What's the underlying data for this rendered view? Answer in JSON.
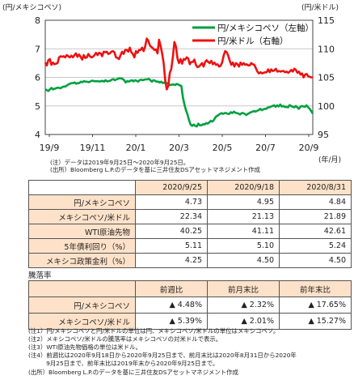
{
  "chart_data": {
    "type": "line",
    "left_unit": "(円/メキシコペソ)",
    "right_unit": "(円/米ドル)",
    "x_unit": "(年/月)",
    "x_ticks": [
      "19/9",
      "19/11",
      "20/1",
      "20/3",
      "20/5",
      "20/7",
      "20/9"
    ],
    "y_left_ticks": [
      "8",
      "7",
      "6",
      "5",
      "4"
    ],
    "y_right_ticks": [
      "115",
      "110",
      "105",
      "100",
      "95"
    ],
    "y_left_range": [
      4,
      8
    ],
    "y_right_range": [
      95,
      115
    ],
    "grid": true,
    "legend_position": "top-right",
    "series": [
      {
        "name": "円/メキシコペソ（左軸）",
        "axis": "left",
        "color": "#00a040",
        "values": [
          5.58,
          5.55,
          5.52,
          5.58,
          5.63,
          5.58,
          5.6,
          5.62,
          5.64,
          5.63,
          5.62,
          5.66,
          5.68,
          5.68,
          5.72,
          5.75,
          5.78,
          5.8,
          5.8,
          5.82,
          5.78,
          5.8,
          5.8,
          5.85,
          5.83,
          5.87,
          5.85,
          5.85,
          5.83,
          5.85,
          5.88,
          5.88,
          5.86,
          5.87,
          5.86,
          5.86,
          5.86,
          5.88,
          5.85,
          5.9,
          5.86,
          5.87,
          5.88,
          5.92,
          5.94,
          5.9,
          5.93,
          5.95,
          5.97,
          5.96,
          5.95,
          5.9,
          5.82,
          5.87,
          5.85,
          5.88,
          5.9,
          5.86,
          5.9,
          5.88,
          5.85,
          5.9,
          5.92,
          5.9,
          5.92,
          5.93,
          5.93,
          5.95,
          5.9,
          5.85,
          5.9,
          5.88,
          5.85,
          5.85,
          5.82,
          5.85,
          5.8,
          5.82,
          5.78,
          5.8,
          5.75,
          5.73,
          5.75,
          5.75,
          5.73,
          5.77,
          5.75,
          5.72,
          5.7,
          5.3,
          5.05,
          4.85,
          4.7,
          4.5,
          4.35,
          4.3,
          4.35,
          4.3,
          4.28,
          4.38,
          4.32,
          4.32,
          4.36,
          4.35,
          4.4,
          4.38,
          4.42,
          4.48,
          4.45,
          4.5,
          4.6,
          4.65,
          4.68,
          4.72,
          4.75,
          4.72,
          4.75,
          4.75,
          4.72,
          4.72,
          4.78,
          4.75,
          4.8,
          4.76,
          4.75,
          4.73,
          4.7,
          4.75,
          4.75,
          4.72,
          4.68,
          4.72,
          4.75,
          4.78,
          4.8,
          4.82,
          4.8,
          4.83,
          4.85,
          4.9,
          4.85,
          4.88,
          4.9,
          4.9,
          4.95,
          4.95,
          4.98,
          5.0,
          5.02,
          4.97,
          5.02,
          4.98,
          5.05,
          4.98,
          5.0,
          4.96,
          4.97,
          4.95,
          5.03,
          5.0,
          4.97,
          4.95,
          5.0,
          4.95,
          4.9,
          4.97,
          5.0,
          4.98,
          4.97,
          5.02,
          4.95,
          4.9,
          4.82,
          4.73
        ]
      },
      {
        "name": "円/米ドル（右軸）",
        "axis": "right",
        "color": "#ee1111",
        "values": [
          107.6,
          107.1,
          108.0,
          108.2,
          107.2,
          107.6,
          107.3,
          107.4,
          107.5,
          108.5,
          108.7,
          108.6,
          108.7,
          108.5,
          108.9,
          108.7,
          108.5,
          108.8,
          108.5,
          108.9,
          109.2,
          108.6,
          109.0,
          108.6,
          108.1,
          108.9,
          108.4,
          108.5,
          109.1,
          108.7,
          108.5,
          108.6,
          108.9,
          109.3,
          108.9,
          109.3,
          109.2,
          108.7,
          109.5,
          109.4,
          109.5,
          109.1,
          109.2,
          109.5,
          109.6,
          109.4,
          108.5,
          108.4,
          108.2,
          108.9,
          109.5,
          109.1,
          109.8,
          109.8,
          109.5,
          110.2,
          109.4,
          109.1,
          108.5,
          109.6,
          109.3,
          109.8,
          109.8,
          110.2,
          109.6,
          110.4,
          111.8,
          111.4,
          110.6,
          110.3,
          110.1,
          109.8,
          109.9,
          109.2,
          111.6,
          110.5,
          109.2,
          107.5,
          104.5,
          102.9,
          103.5,
          105.8,
          106.5,
          108.6,
          111.2,
          110.4,
          108.3,
          107.5,
          108.2,
          107.4,
          108.2,
          108.1,
          108.5,
          108.3,
          107.3,
          107.7,
          107.7,
          108.1,
          107.2,
          106.8,
          106.9,
          107.2,
          107.5,
          106.9,
          107.7,
          108.0,
          107.7,
          107.5,
          107.9,
          107.3,
          107.6,
          107.2,
          107.3,
          106.9,
          107.0,
          107.6,
          108.8,
          109.6,
          109.4,
          108.8,
          107.9,
          107.2,
          107.6,
          106.9,
          107.5,
          107.3,
          106.9,
          107.6,
          107.2,
          107.5,
          107.2,
          107.3,
          107.1,
          107.1,
          107.5,
          107.3,
          107.2,
          106.6,
          106.0,
          105.7,
          105.9,
          105.7,
          105.8,
          105.9,
          105.9,
          106.4,
          105.9,
          106.4,
          106.1,
          106.2,
          106.5,
          106.0,
          106.1,
          106.0,
          106.1,
          106.1,
          105.9,
          106.0,
          105.8,
          106.0,
          106.3,
          106.0,
          106.5,
          106.3,
          105.8,
          106.0,
          105.5,
          105.7,
          105.0,
          105.5,
          105.6,
          105.2,
          105.1,
          105.0,
          105.0
        ]
      }
    ]
  },
  "chart_notes": [
    "(注）データは2019年9月25日～2020年9月25日。",
    "(出所）Bloomberg L.P.のデータを基に三井住友DSアセットマネジメント作成"
  ],
  "rates_table": {
    "headers": [
      "2020/9/25",
      "2020/9/18",
      "2020/8/31"
    ],
    "rows": [
      {
        "label": "円/メキシコペソ",
        "values": [
          "4.73",
          "4.95",
          "4.84"
        ]
      },
      {
        "label": "メキシコペソ/米ドル",
        "values": [
          "22.34",
          "21.13",
          "21.89"
        ]
      },
      {
        "label": "WTI原油先物",
        "values": [
          "40.25",
          "41.11",
          "42.61"
        ]
      },
      {
        "label": "5年債利回り（%）",
        "values": [
          "5.11",
          "5.10",
          "5.24"
        ]
      },
      {
        "label": "メキシコ政策金利（%）",
        "values": [
          "4.25",
          "4.50",
          "4.50"
        ]
      }
    ]
  },
  "change_section_title": "騰落率",
  "change_table": {
    "headers": [
      "前週比",
      "前月末比",
      "前年末比"
    ],
    "rows": [
      {
        "label": "円/メキシコペソ",
        "values": [
          "▲ 4.48%",
          "▲ 2.32%",
          "▲ 17.65%"
        ]
      },
      {
        "label": "メキシコペソ/米ドル",
        "values": [
          "▲ 5.39%",
          "▲ 2.01%",
          "▲ 15.27%"
        ]
      }
    ]
  },
  "footnotes": [
    "(注1）円/メキシコペソと円/米ドルの単位は円、メキシコペソ/米ドルの単位はメキシコペソ。",
    "(注2）メキシコペソ/米ドルの騰落率はメキシコペソの対米ドルで表示。",
    "(注3）WTI原油先物価格の単位は米ドル。",
    "(注4）前週比は2020年9月18日から2020年9月25日まで、前月末比は2020年8月31日から2020年",
    "　　　9月25日まで、前年末比は2019年末から2020年9月25日まで。",
    "(出所）Bloomberg L.P.のデータを基に三井住友DSアセットマネジメント作成"
  ]
}
